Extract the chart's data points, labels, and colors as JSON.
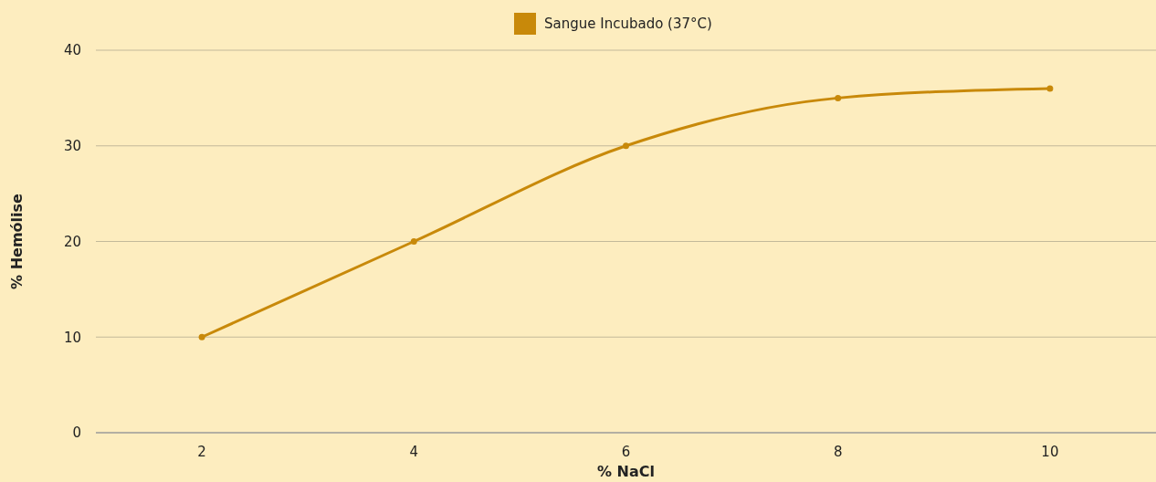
{
  "chart_data": {
    "type": "line",
    "categories": [
      "2",
      "4",
      "6",
      "8",
      "10"
    ],
    "series": [
      {
        "name": "Sangue Incubado (37°C)",
        "color": "#c8890a",
        "values": [
          10,
          20,
          30,
          35,
          36
        ]
      }
    ],
    "ylim": [
      0,
      40
    ],
    "yticks": [
      0,
      10,
      20,
      30,
      40
    ],
    "xlabel": "% NaCl",
    "ylabel": "% Hemólise",
    "grid": "y",
    "legend": "top",
    "marker": "circle",
    "line_style": "solid"
  }
}
